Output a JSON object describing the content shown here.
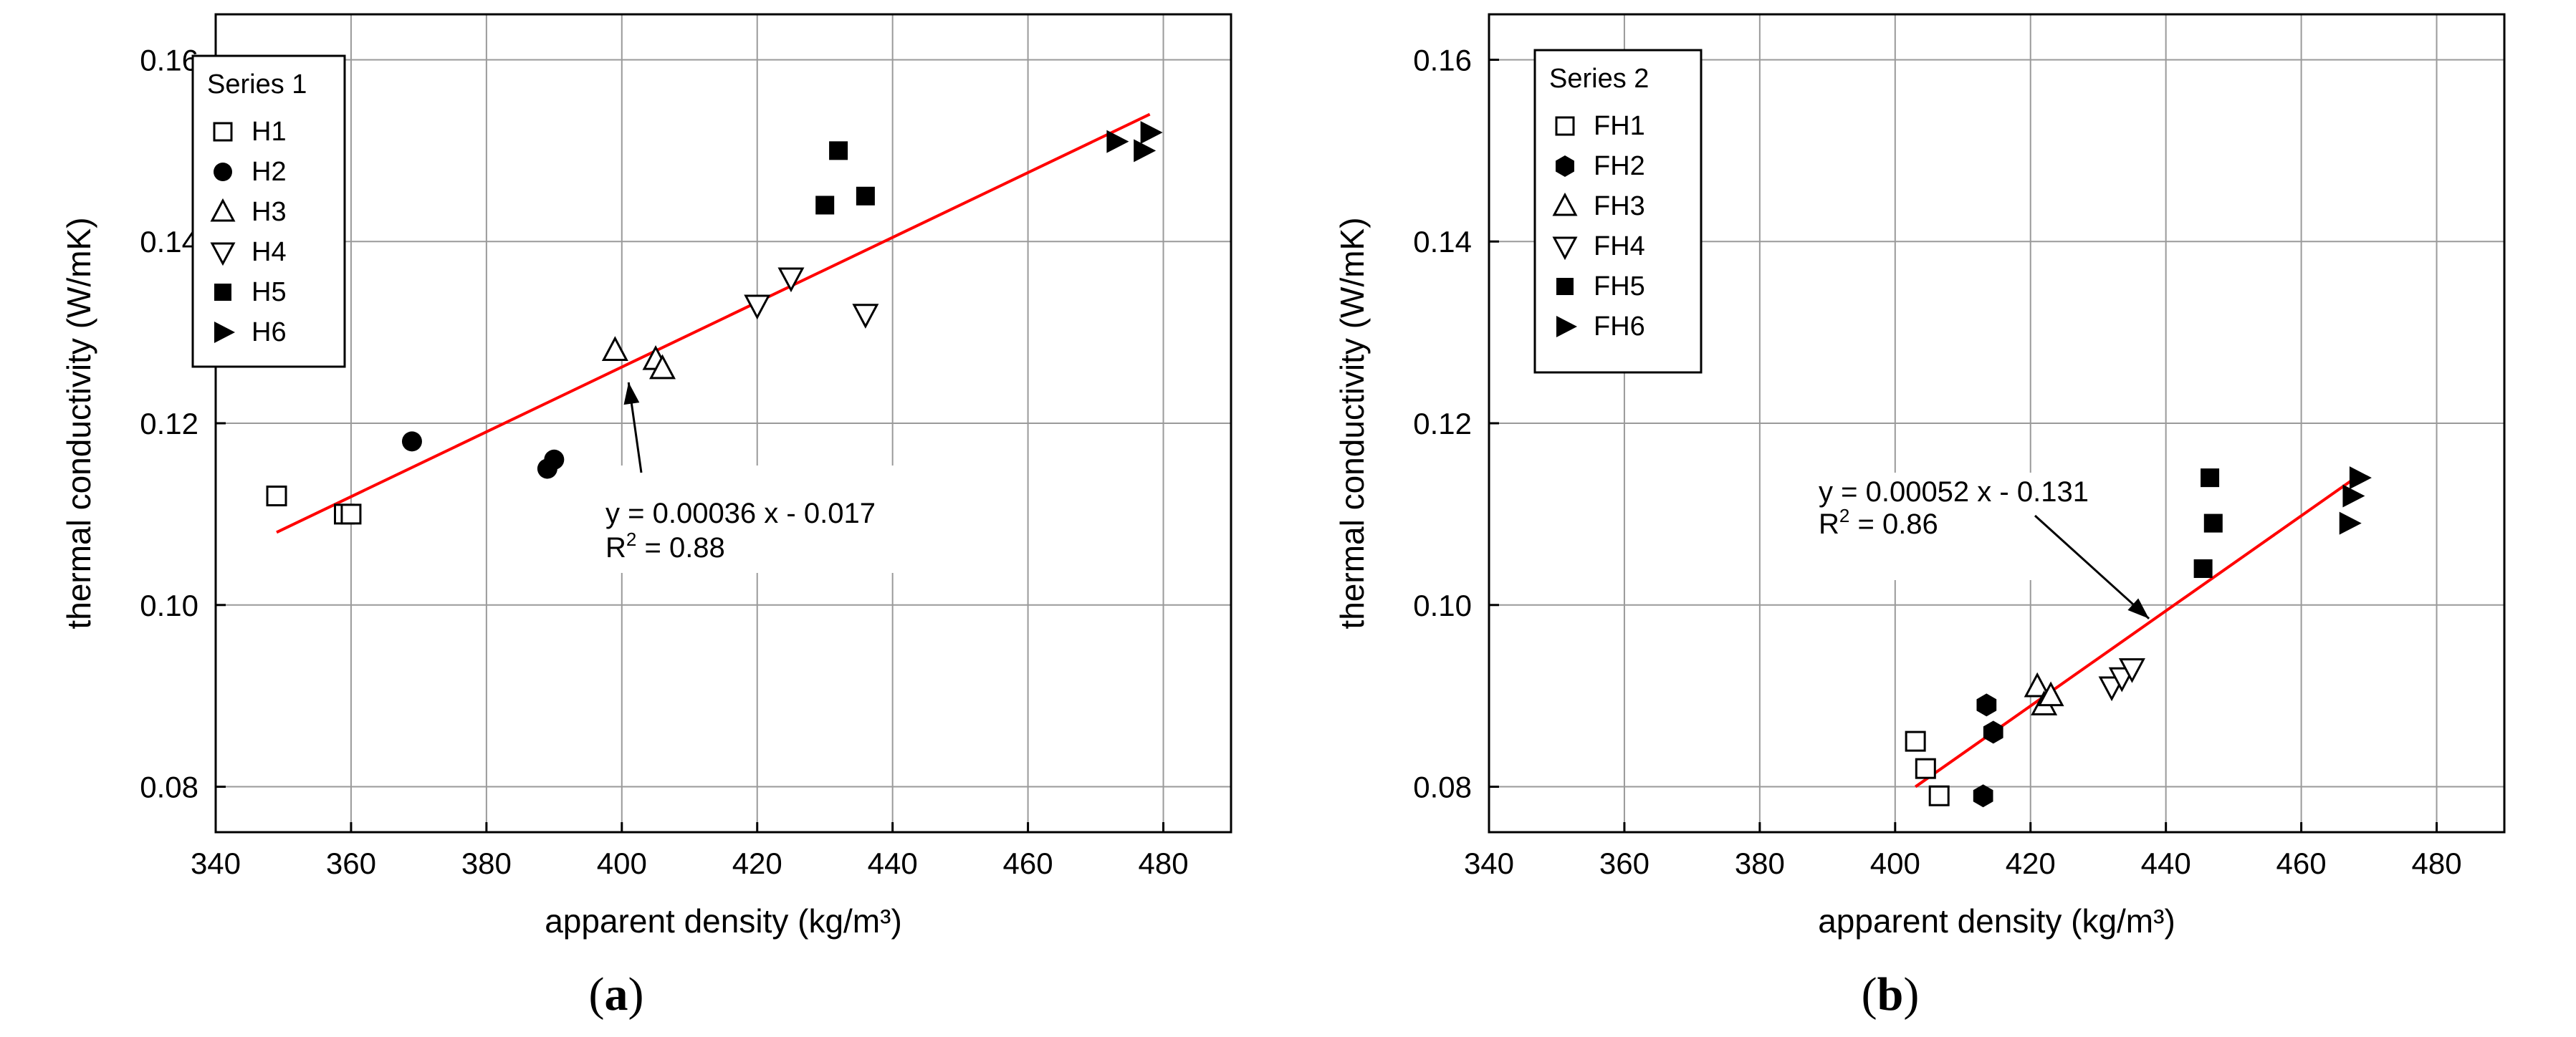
{
  "chart_data": [
    {
      "type": "scatter",
      "panel": "a",
      "caption": "(a)",
      "xlabel": "apparent density (kg/m³)",
      "ylabel": "thermal conductivity (W/mK)",
      "xlim": [
        340,
        490
      ],
      "ylim": [
        0.075,
        0.165
      ],
      "xticks": [
        340,
        360,
        380,
        400,
        420,
        440,
        460,
        480
      ],
      "yticks": [
        0.08,
        0.1,
        0.12,
        0.14,
        0.16
      ],
      "xtick_labels": [
        "340",
        "360",
        "380",
        "400",
        "420",
        "440",
        "460",
        "480"
      ],
      "ytick_labels": [
        "0.08",
        "0.10",
        "0.12",
        "0.14",
        "0.16"
      ],
      "grid": true,
      "legend_position": "top-left",
      "legend_title": "Series 1",
      "series": [
        {
          "name": "H1",
          "marker": "square-open",
          "x": [
            349,
            359,
            360
          ],
          "y": [
            0.112,
            0.11,
            0.11
          ]
        },
        {
          "name": "H2",
          "marker": "circle-filled",
          "x": [
            369,
            389,
            390
          ],
          "y": [
            0.118,
            0.115,
            0.116
          ]
        },
        {
          "name": "H3",
          "marker": "triangle-up-open",
          "x": [
            399,
            405,
            406
          ],
          "y": [
            0.128,
            0.127,
            0.126
          ]
        },
        {
          "name": "H4",
          "marker": "triangle-down-open",
          "x": [
            420,
            425,
            436
          ],
          "y": [
            0.133,
            0.136,
            0.132
          ]
        },
        {
          "name": "H5",
          "marker": "square-filled",
          "x": [
            430,
            432,
            436
          ],
          "y": [
            0.144,
            0.15,
            0.145
          ]
        },
        {
          "name": "H6",
          "marker": "triangle-right-filled",
          "x": [
            473,
            477,
            478
          ],
          "y": [
            0.151,
            0.15,
            0.152
          ]
        }
      ],
      "fit_line": {
        "x": [
          349,
          478
        ],
        "y": [
          0.108,
          0.154
        ],
        "color": "#ff0000"
      },
      "annotation": {
        "equation": "y = 0.00036 x - 0.017",
        "r2_label": "R",
        "r2_sup": "2",
        "r2_value": " = 0.88",
        "arrow_to": [
          401,
          0.1245
        ]
      }
    },
    {
      "type": "scatter",
      "panel": "b",
      "caption": "(b)",
      "xlabel": "apparent density (kg/m³)",
      "ylabel": "thermal conductivity (W/mK)",
      "xlim": [
        340,
        490
      ],
      "ylim": [
        0.075,
        0.165
      ],
      "xticks": [
        340,
        360,
        380,
        400,
        420,
        440,
        460,
        480
      ],
      "yticks": [
        0.08,
        0.1,
        0.12,
        0.14,
        0.16
      ],
      "xtick_labels": [
        "340",
        "360",
        "380",
        "400",
        "420",
        "440",
        "460",
        "480"
      ],
      "ytick_labels": [
        "0.08",
        "0.10",
        "0.12",
        "0.14",
        "0.16"
      ],
      "grid": true,
      "legend_position": "top-left",
      "legend_title": "Series 2",
      "series": [
        {
          "name": "FH1",
          "marker": "square-open",
          "x": [
            403,
            404.5,
            406.5
          ],
          "y": [
            0.085,
            0.082,
            0.079
          ]
        },
        {
          "name": "FH2",
          "marker": "hexagon-filled",
          "x": [
            413,
            413.5,
            414.5
          ],
          "y": [
            0.079,
            0.089,
            0.086
          ]
        },
        {
          "name": "FH3",
          "marker": "triangle-up-open",
          "x": [
            421,
            422,
            423
          ],
          "y": [
            0.091,
            0.089,
            0.09
          ]
        },
        {
          "name": "FH4",
          "marker": "triangle-down-open",
          "x": [
            432,
            433.5,
            435
          ],
          "y": [
            0.091,
            0.092,
            0.093
          ]
        },
        {
          "name": "FH5",
          "marker": "square-filled",
          "x": [
            445.5,
            446.5,
            447
          ],
          "y": [
            0.104,
            0.114,
            0.109
          ]
        },
        {
          "name": "FH6",
          "marker": "triangle-right-filled",
          "x": [
            467,
            467.5,
            468.5
          ],
          "y": [
            0.109,
            0.112,
            0.114
          ]
        }
      ],
      "fit_line": {
        "x": [
          403,
          468
        ],
        "y": [
          0.08,
          0.114
        ],
        "color": "#ff0000"
      },
      "annotation": {
        "equation": "y = 0.00052 x - 0.131",
        "r2_label": "R",
        "r2_sup": "2",
        "r2_value": " = 0.86",
        "arrow_to": [
          437.5,
          0.0985
        ]
      }
    }
  ]
}
